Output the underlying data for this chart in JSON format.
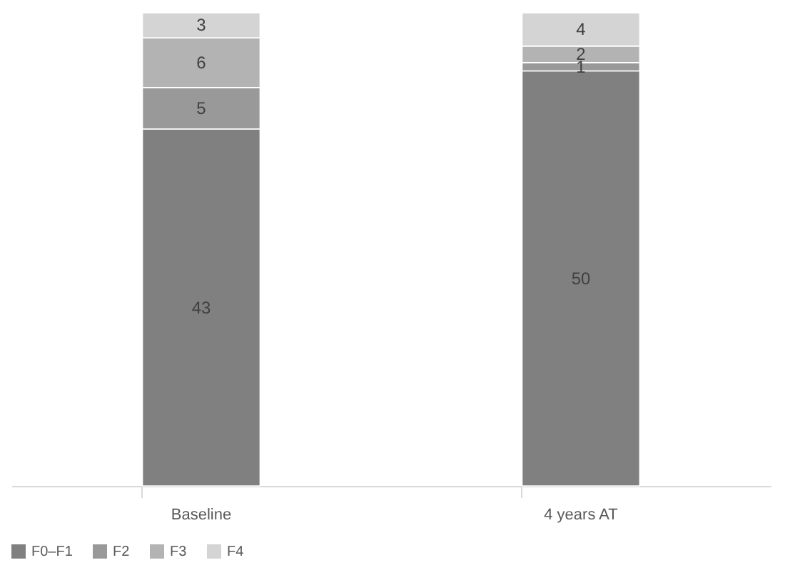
{
  "chart_data": {
    "type": "bar",
    "stacked": true,
    "categories": [
      "Baseline",
      "4 years AT"
    ],
    "series": [
      {
        "name": "F0–F1",
        "color": "#808080",
        "values": [
          43,
          50
        ]
      },
      {
        "name": "F2",
        "color": "#999999",
        "values": [
          5,
          1
        ]
      },
      {
        "name": "F3",
        "color": "#b3b3b3",
        "values": [
          6,
          2
        ]
      },
      {
        "name": "F4",
        "color": "#d4d4d4",
        "values": [
          3,
          4
        ]
      }
    ],
    "data_labels": true,
    "legend": "bottom",
    "grid": false,
    "tick_labels": "x"
  }
}
